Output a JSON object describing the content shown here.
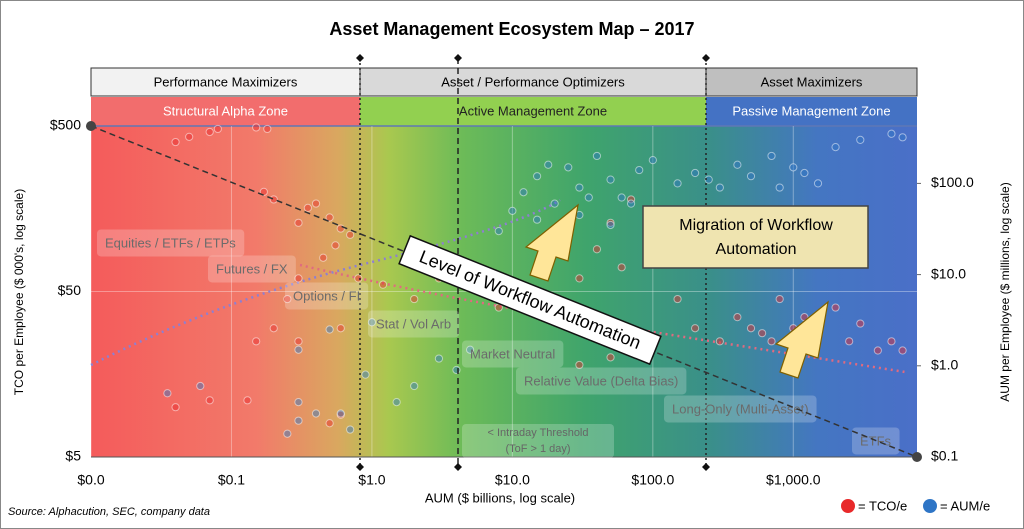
{
  "chart_data": {
    "type": "scatter",
    "title": "Asset Management Ecosystem Map – 2017",
    "x_label": "AUM ($ billions, log scale)",
    "y_label": "TCO per Employee ($ 000's, log scale)",
    "y2_label": "AUM per Employee ($ millions, log scale)",
    "source": "Source: Alphacution, SEC, company data",
    "log_x": true,
    "log_y": true,
    "grid": true,
    "xlim": [
      0.01,
      7600
    ],
    "ylim": [
      5,
      500
    ],
    "y2lim": [
      0.1,
      426
    ],
    "xticks": [
      {
        "value": 0.01,
        "label": "$0.0"
      },
      {
        "value": 0.1,
        "label": "$0.1"
      },
      {
        "value": 1,
        "label": "$1.0"
      },
      {
        "value": 10,
        "label": "$10.0"
      },
      {
        "value": 100,
        "label": "$100.0"
      },
      {
        "value": 1000,
        "label": "$1,000.0"
      }
    ],
    "yticks": [
      {
        "value": 5,
        "label": "$5"
      },
      {
        "value": 50,
        "label": "$50"
      },
      {
        "value": 500,
        "label": "$500"
      }
    ],
    "y2ticks": [
      {
        "value": 0.1,
        "label": "$0.1"
      },
      {
        "value": 1,
        "label": "$1.0"
      },
      {
        "value": 10,
        "label": "$10.0"
      },
      {
        "value": 100,
        "label": "$100.0"
      }
    ],
    "headers": [
      "Performance Maximizers",
      "Asset / Performance Optimizers",
      "Asset Maximizers"
    ],
    "zones": [
      "Structural Alpha Zone",
      "Active Management Zone",
      "Passive Management Zone"
    ],
    "strategies": [
      "Equities / ETFs / ETPs",
      "Futures / FX",
      "Options / FI",
      "Stat / Vol Arb",
      "Market Neutral",
      "Relative Value (Delta Bias)",
      "Long-Only (Multi-Asset)",
      "ETFs"
    ],
    "threshold": [
      "< Intraday Threshold",
      "(ToF > 1 day)"
    ],
    "automation_label": "Level of Workflow Automation",
    "migration_box": [
      "Migration of Workflow",
      "Automation"
    ],
    "series": [
      {
        "name": "= TCO/e",
        "color": "#e8292a",
        "x": [
          0.04,
          0.05,
          0.07,
          0.08,
          0.15,
          0.18,
          0.17,
          0.2,
          0.3,
          0.35,
          0.4,
          0.5,
          0.6,
          0.7,
          0.55,
          0.45,
          0.3,
          0.25,
          0.2,
          0.15,
          0.3,
          0.6,
          0.8,
          1.2,
          2,
          3,
          5,
          8,
          12,
          20,
          30,
          40,
          50,
          60,
          80,
          100,
          150,
          200,
          300,
          400,
          500,
          600,
          700,
          800,
          1000,
          1200,
          1500,
          2000,
          2500,
          3000,
          4000,
          5000,
          6000,
          0.04,
          0.07,
          0.13,
          0.5,
          0.6,
          70,
          120,
          200,
          50,
          30
        ],
        "values": [
          400,
          430,
          460,
          480,
          490,
          480,
          200,
          180,
          130,
          160,
          170,
          140,
          120,
          110,
          95,
          80,
          60,
          45,
          30,
          25,
          25,
          30,
          60,
          55,
          45,
          60,
          70,
          40,
          45,
          35,
          60,
          90,
          130,
          70,
          25,
          110,
          45,
          30,
          25,
          35,
          30,
          28,
          25,
          45,
          30,
          35,
          30,
          40,
          25,
          32,
          22,
          25,
          22,
          10,
          11,
          11,
          8,
          9,
          180,
          150,
          120,
          20,
          18
        ]
      },
      {
        "name": "= AUM/e",
        "color": "#2e75c6",
        "axis": "y2",
        "x": [
          0.035,
          0.06,
          0.3,
          0.3,
          0.4,
          0.6,
          0.7,
          0.25,
          1.5,
          2,
          3,
          4,
          5,
          0.9,
          0.5,
          1,
          0.3,
          8,
          10,
          12,
          15,
          20,
          25,
          30,
          40,
          50,
          60,
          80,
          100,
          150,
          200,
          300,
          400,
          500,
          700,
          1000,
          1500,
          2000,
          3000,
          5000,
          6000,
          15,
          30,
          50,
          18,
          35,
          70,
          250,
          800,
          1200
        ],
        "values": [
          0.5,
          0.6,
          0.4,
          0.25,
          0.3,
          0.3,
          0.2,
          0.18,
          0.4,
          0.6,
          1.2,
          0.9,
          1.5,
          0.8,
          2.5,
          3,
          1.5,
          30,
          50,
          80,
          120,
          60,
          150,
          90,
          200,
          110,
          70,
          140,
          180,
          100,
          130,
          90,
          160,
          120,
          200,
          150,
          100,
          250,
          300,
          350,
          320,
          40,
          45,
          35,
          160,
          70,
          60,
          110,
          90,
          130
        ]
      }
    ]
  }
}
